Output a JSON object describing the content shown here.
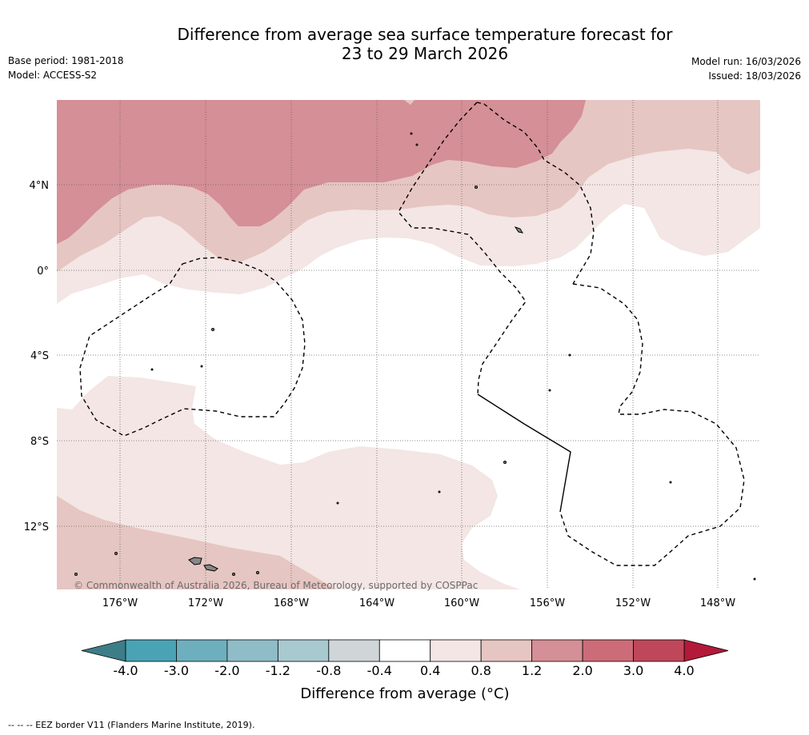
{
  "header": {
    "title_line1": "Difference from average sea surface temperature forecast for",
    "title_line2": "23 to 29 March 2026",
    "base_period": "Base period: 1981-2018",
    "model": "Model: ACCESS-S2",
    "model_run": "Model run: 16/03/2026",
    "issued": "Issued: 18/03/2026"
  },
  "map": {
    "lat_labels": [
      "4°N",
      "0°",
      "4°S",
      "8°S",
      "12°S"
    ],
    "lon_labels": [
      "176°W",
      "172°W",
      "168°W",
      "164°W",
      "160°W",
      "156°W",
      "152°W",
      "148°W"
    ],
    "credit": "© Commonwealth of Australia 2026, Bureau of Meteorology, supported by COSPPac"
  },
  "colorbar": {
    "tick_labels": [
      "-4.0",
      "-3.0",
      "-2.0",
      "-1.2",
      "-0.8",
      "-0.4",
      "0.4",
      "0.8",
      "1.2",
      "2.0",
      "3.0",
      "4.0"
    ],
    "colors": [
      "#4aa3b4",
      "#6eafbe",
      "#8fbcc7",
      "#a9c9d0",
      "#d0d6d8",
      "#ffffff",
      "#f3e6e5",
      "#e6c6c2",
      "#d58f96",
      "#cb6c78",
      "#be4859"
    ],
    "under_color": "#3d7d88",
    "over_color": "#b4193a",
    "label": "Difference from average (°C)"
  },
  "footer": "--  --  -- EEZ border V11 (Flanders Marine Institute, 2019)."
}
